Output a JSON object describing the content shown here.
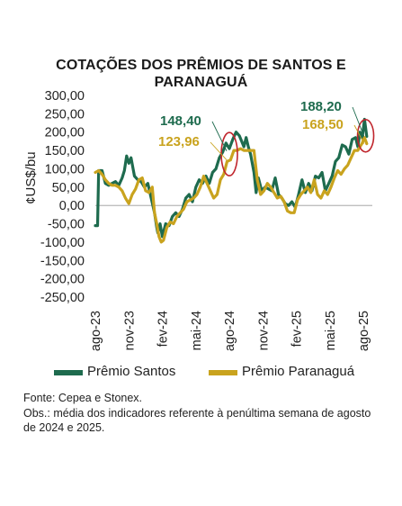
{
  "chart_data": {
    "type": "line",
    "title": "COTAÇÕES DOS PRÊMIOS DE SANTOS E PARANAGUÁ",
    "title_lines": [
      "COTAÇÕES DOS PRÊMIOS DE SANTOS E",
      "PARANAGUÁ"
    ],
    "ylabel": "¢US$/bu",
    "xlabel": "",
    "ylim": [
      -250,
      300
    ],
    "yticks": [
      "300,00",
      "250,00",
      "200,00",
      "150,00",
      "100,00",
      "50,00",
      "0,00",
      "-50,00",
      "-100,00",
      "-150,00",
      "-200,00",
      "-250,00"
    ],
    "ytick_values": [
      300,
      250,
      200,
      150,
      100,
      50,
      0,
      -50,
      -100,
      -150,
      -200,
      -250
    ],
    "xlim": [
      0,
      24.8
    ],
    "xticks": [
      "ago-23",
      "nov-23",
      "fev-24",
      "mai-24",
      "ago-24",
      "nov-24",
      "fev-25",
      "mai-25",
      "ago-25"
    ],
    "xtick_values": [
      0,
      3,
      6,
      9,
      12,
      15,
      18,
      21,
      24
    ],
    "grid": false,
    "legend_position": "bottom",
    "series": [
      {
        "name": "Prêmio Santos",
        "color": "#1e6b4e",
        "x": [
          0,
          0.2,
          0.3,
          0.6,
          0.9,
          1.2,
          1.5,
          1.8,
          2.1,
          2.4,
          2.6,
          2.8,
          3.0,
          3.2,
          3.5,
          3.8,
          4.1,
          4.4,
          4.7,
          5.0,
          5.3,
          5.5,
          5.6,
          5.8,
          6.0,
          6.3,
          6.6,
          6.9,
          7.2,
          7.5,
          7.8,
          8.1,
          8.4,
          8.7,
          9.0,
          9.3,
          9.6,
          9.9,
          10.2,
          10.5,
          10.8,
          11.1,
          11.4,
          11.7,
          12.0,
          12.3,
          12.6,
          12.9,
          13.1,
          13.3,
          13.5,
          13.7,
          13.9,
          14.2,
          14.4,
          14.6,
          14.9,
          15.2,
          15.5,
          15.8,
          16.1,
          16.4,
          16.7,
          17.0,
          17.3,
          17.6,
          17.9,
          18.2,
          18.5,
          18.8,
          19.1,
          19.4,
          19.7,
          20.0,
          20.3,
          20.6,
          20.9,
          21.2,
          21.5,
          21.8,
          22.1,
          22.4,
          22.7,
          23.0,
          23.3,
          23.5,
          23.7,
          23.9,
          24.1,
          24.3
        ],
        "values": [
          -55,
          -55,
          95,
          95,
          60,
          55,
          60,
          65,
          55,
          75,
          95,
          135,
          115,
          130,
          80,
          70,
          65,
          50,
          60,
          20,
          -20,
          -60,
          -75,
          -50,
          -85,
          -50,
          -55,
          -30,
          -20,
          -30,
          -10,
          20,
          30,
          10,
          50,
          70,
          60,
          80,
          60,
          90,
          100,
          130,
          145,
          170,
          155,
          180,
          200,
          190,
          175,
          160,
          185,
          160,
          140,
          90,
          35,
          75,
          40,
          50,
          45,
          40,
          75,
          30,
          20,
          5,
          0,
          10,
          -5,
          30,
          70,
          35,
          60,
          40,
          80,
          75,
          90,
          40,
          60,
          80,
          120,
          130,
          165,
          160,
          140,
          180,
          185,
          160,
          200,
          185,
          235,
          188.2
        ]
      },
      {
        "name": "Prêmio Paranaguá",
        "color": "#c9a31e",
        "x": [
          0,
          0.3,
          0.6,
          0.9,
          1.2,
          1.5,
          1.8,
          2.1,
          2.4,
          2.7,
          3.0,
          3.3,
          3.6,
          3.9,
          4.2,
          4.5,
          4.8,
          5.1,
          5.3,
          5.5,
          5.7,
          5.9,
          6.1,
          6.4,
          6.7,
          7.0,
          7.3,
          7.6,
          7.9,
          8.2,
          8.5,
          8.8,
          9.1,
          9.4,
          9.7,
          10.0,
          10.3,
          10.6,
          10.9,
          11.2,
          11.5,
          11.8,
          12.1,
          12.4,
          12.7,
          13.0,
          13.3,
          13.6,
          13.9,
          14.2,
          14.5,
          14.8,
          15.1,
          15.4,
          15.7,
          16.0,
          16.3,
          16.6,
          16.9,
          17.2,
          17.5,
          17.8,
          18.1,
          18.4,
          18.7,
          19.0,
          19.3,
          19.6,
          19.9,
          20.2,
          20.5,
          20.8,
          21.1,
          21.4,
          21.7,
          22.0,
          22.3,
          22.6,
          22.9,
          23.2,
          23.5,
          23.7,
          23.9,
          24.1,
          24.3
        ],
        "values": [
          90,
          95,
          85,
          70,
          60,
          55,
          55,
          50,
          40,
          20,
          5,
          30,
          45,
          70,
          75,
          40,
          35,
          50,
          -20,
          -50,
          -85,
          -100,
          -95,
          -60,
          -45,
          -50,
          -30,
          -20,
          -10,
          10,
          15,
          20,
          30,
          50,
          80,
          60,
          40,
          20,
          30,
          70,
          85,
          120,
          124,
          150,
          150,
          155,
          150,
          150,
          150,
          150,
          70,
          30,
          40,
          60,
          50,
          35,
          20,
          25,
          10,
          -15,
          -20,
          -20,
          15,
          30,
          40,
          50,
          35,
          70,
          30,
          20,
          40,
          30,
          50,
          75,
          95,
          85,
          100,
          110,
          130,
          150,
          150,
          160,
          170,
          185,
          168.5
        ]
      }
    ],
    "annotations": [
      {
        "text": "148,40",
        "series": "Prêmio Santos",
        "x": 12.0,
        "y": 148.4
      },
      {
        "text": "123,96",
        "series": "Prêmio Paranaguá",
        "x": 12.0,
        "y": 123.96
      },
      {
        "text": "188,20",
        "series": "Prêmio Santos",
        "x": 24.3,
        "y": 188.2
      },
      {
        "text": "168,50",
        "series": "Prêmio Paranaguá",
        "x": 24.3,
        "y": 168.5
      }
    ],
    "highlight_color": "#c0262d"
  },
  "footer": {
    "source": "Fonte: Cepea e Stonex.",
    "note": "Obs.: média dos indicadores referente à penúltima semana de agosto de 2024 e 2025."
  }
}
